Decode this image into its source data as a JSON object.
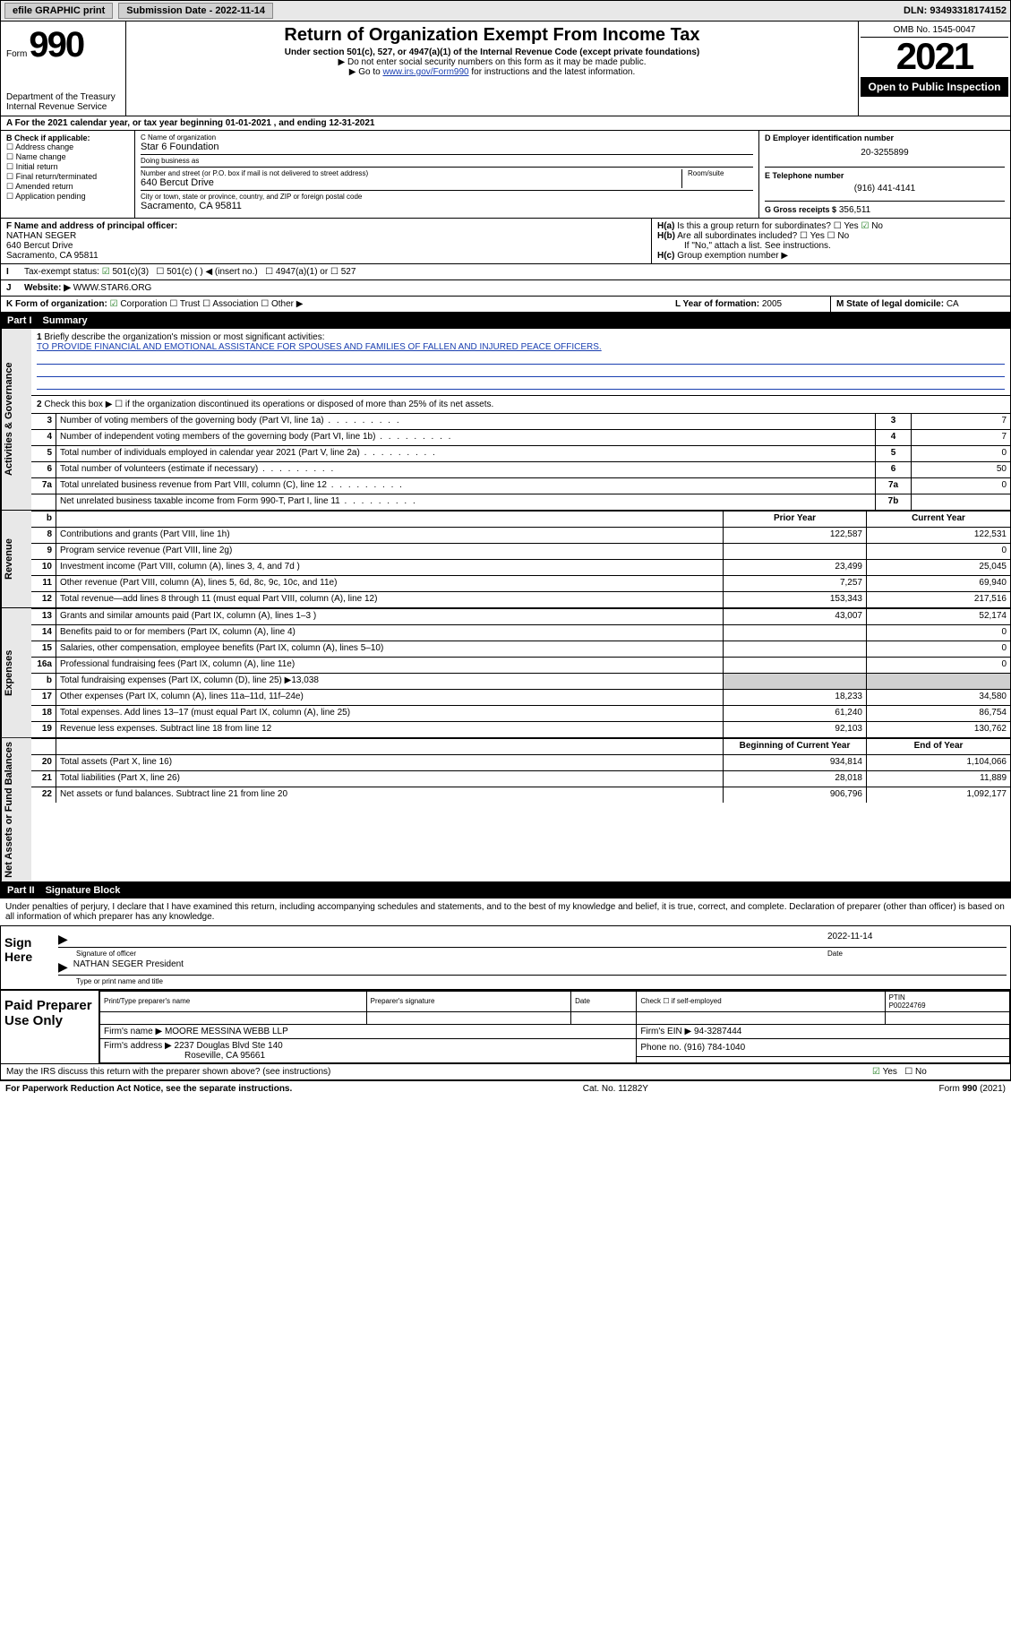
{
  "topbar": {
    "efile": "efile GRAPHIC print",
    "submission_label": "Submission Date - 2022-11-14",
    "dln": "DLN: 93493318174152"
  },
  "header": {
    "form_word": "Form",
    "form_number": "990",
    "dept": "Department of the Treasury",
    "irs": "Internal Revenue Service",
    "title": "Return of Organization Exempt From Income Tax",
    "subtitle": "Under section 501(c), 527, or 4947(a)(1) of the Internal Revenue Code (except private foundations)",
    "note1": "Do not enter social security numbers on this form as it may be made public.",
    "note2_pre": "Go to ",
    "note2_link": "www.irs.gov/Form990",
    "note2_post": " for instructions and the latest information.",
    "omb": "OMB No. 1545-0047",
    "year": "2021",
    "open_public": "Open to Public Inspection"
  },
  "line_a": "For the 2021 calendar year, or tax year beginning 01-01-2021  , and ending 12-31-2021",
  "box_b": {
    "header": "B Check if applicable:",
    "items": [
      "Address change",
      "Name change",
      "Initial return",
      "Final return/terminated",
      "Amended return",
      "Application pending"
    ]
  },
  "box_c": {
    "name_lbl": "C Name of organization",
    "name": "Star 6 Foundation",
    "dba_lbl": "Doing business as",
    "dba": "",
    "street_lbl": "Number and street (or P.O. box if mail is not delivered to street address)",
    "room_lbl": "Room/suite",
    "street": "640 Bercut Drive",
    "city_lbl": "City or town, state or province, country, and ZIP or foreign postal code",
    "city": "Sacramento, CA  95811"
  },
  "box_d": {
    "lbl": "D Employer identification number",
    "val": "20-3255899"
  },
  "box_e": {
    "lbl": "E Telephone number",
    "val": "(916) 441-4141"
  },
  "box_g": {
    "lbl": "G Gross receipts $",
    "val": "356,511"
  },
  "box_f": {
    "lbl": "F Name and address of principal officer:",
    "name": "NATHAN SEGER",
    "street": "640 Bercut Drive",
    "city": "Sacramento, CA  95811"
  },
  "box_h": {
    "a": "Is this a group return for subordinates?",
    "b": "Are all subordinates included?",
    "note": "If \"No,\" attach a list. See instructions.",
    "c": "Group exemption number ▶"
  },
  "box_i": {
    "lbl": "Tax-exempt status:",
    "opt1": "501(c)(3)",
    "opt2": "501(c) (  ) ◀ (insert no.)",
    "opt3": "4947(a)(1) or",
    "opt4": "527"
  },
  "box_j": {
    "lbl": "Website: ▶",
    "val": "WWW.STAR6.ORG"
  },
  "box_k": {
    "lbl": "K Form of organization:",
    "opts": [
      "Corporation",
      "Trust",
      "Association",
      "Other ▶"
    ]
  },
  "box_l": {
    "lbl": "L Year of formation:",
    "val": "2005"
  },
  "box_m": {
    "lbl": "M State of legal domicile:",
    "val": "CA"
  },
  "part1": {
    "label": "Part I",
    "title": "Summary"
  },
  "sidelabels": {
    "gov": "Activities & Governance",
    "rev": "Revenue",
    "exp": "Expenses",
    "net": "Net Assets or Fund Balances"
  },
  "line1": {
    "num": "1",
    "desc": "Briefly describe the organization's mission or most significant activities:",
    "mission": "TO PROVIDE FINANCIAL AND EMOTIONAL ASSISTANCE FOR SPOUSES AND FAMILIES OF FALLEN AND INJURED PEACE OFFICERS."
  },
  "line2": {
    "num": "2",
    "desc": "Check this box ▶ ☐  if the organization discontinued its operations or disposed of more than 25% of its net assets."
  },
  "gov_lines": [
    {
      "num": "3",
      "desc": "Number of voting members of the governing body (Part VI, line 1a)",
      "box": "3",
      "val": "7"
    },
    {
      "num": "4",
      "desc": "Number of independent voting members of the governing body (Part VI, line 1b)",
      "box": "4",
      "val": "7"
    },
    {
      "num": "5",
      "desc": "Total number of individuals employed in calendar year 2021 (Part V, line 2a)",
      "box": "5",
      "val": "0"
    },
    {
      "num": "6",
      "desc": "Total number of volunteers (estimate if necessary)",
      "box": "6",
      "val": "50"
    },
    {
      "num": "7a",
      "desc": "Total unrelated business revenue from Part VIII, column (C), line 12",
      "box": "7a",
      "val": "0"
    },
    {
      "num": "",
      "desc": "Net unrelated business taxable income from Form 990-T, Part I, line 11",
      "box": "7b",
      "val": ""
    }
  ],
  "year_hdr": {
    "b": "b",
    "prior": "Prior Year",
    "current": "Current Year"
  },
  "rev_lines": [
    {
      "num": "8",
      "desc": "Contributions and grants (Part VIII, line 1h)",
      "prior": "122,587",
      "curr": "122,531"
    },
    {
      "num": "9",
      "desc": "Program service revenue (Part VIII, line 2g)",
      "prior": "",
      "curr": "0"
    },
    {
      "num": "10",
      "desc": "Investment income (Part VIII, column (A), lines 3, 4, and 7d )",
      "prior": "23,499",
      "curr": "25,045"
    },
    {
      "num": "11",
      "desc": "Other revenue (Part VIII, column (A), lines 5, 6d, 8c, 9c, 10c, and 11e)",
      "prior": "7,257",
      "curr": "69,940"
    },
    {
      "num": "12",
      "desc": "Total revenue—add lines 8 through 11 (must equal Part VIII, column (A), line 12)",
      "prior": "153,343",
      "curr": "217,516"
    }
  ],
  "exp_lines": [
    {
      "num": "13",
      "desc": "Grants and similar amounts paid (Part IX, column (A), lines 1–3 )",
      "prior": "43,007",
      "curr": "52,174"
    },
    {
      "num": "14",
      "desc": "Benefits paid to or for members (Part IX, column (A), line 4)",
      "prior": "",
      "curr": "0"
    },
    {
      "num": "15",
      "desc": "Salaries, other compensation, employee benefits (Part IX, column (A), lines 5–10)",
      "prior": "",
      "curr": "0"
    },
    {
      "num": "16a",
      "desc": "Professional fundraising fees (Part IX, column (A), line 11e)",
      "prior": "",
      "curr": "0"
    }
  ],
  "line16b": {
    "num": "b",
    "desc": "Total fundraising expenses (Part IX, column (D), line 25) ▶13,038"
  },
  "exp_lines2": [
    {
      "num": "17",
      "desc": "Other expenses (Part IX, column (A), lines 11a–11d, 11f–24e)",
      "prior": "18,233",
      "curr": "34,580"
    },
    {
      "num": "18",
      "desc": "Total expenses. Add lines 13–17 (must equal Part IX, column (A), line 25)",
      "prior": "61,240",
      "curr": "86,754"
    },
    {
      "num": "19",
      "desc": "Revenue less expenses. Subtract line 18 from line 12",
      "prior": "92,103",
      "curr": "130,762"
    }
  ],
  "net_hdr": {
    "prior": "Beginning of Current Year",
    "curr": "End of Year"
  },
  "net_lines": [
    {
      "num": "20",
      "desc": "Total assets (Part X, line 16)",
      "prior": "934,814",
      "curr": "1,104,066"
    },
    {
      "num": "21",
      "desc": "Total liabilities (Part X, line 26)",
      "prior": "28,018",
      "curr": "11,889"
    },
    {
      "num": "22",
      "desc": "Net assets or fund balances. Subtract line 21 from line 20",
      "prior": "906,796",
      "curr": "1,092,177"
    }
  ],
  "part2": {
    "label": "Part II",
    "title": "Signature Block"
  },
  "penalties": "Under penalties of perjury, I declare that I have examined this return, including accompanying schedules and statements, and to the best of my knowledge and belief, it is true, correct, and complete. Declaration of preparer (other than officer) is based on all information of which preparer has any knowledge.",
  "sign": {
    "here": "Sign Here",
    "sig_lbl": "Signature of officer",
    "date_lbl": "Date",
    "date": "2022-11-14",
    "name": "NATHAN SEGER President",
    "name_lbl": "Type or print name and title"
  },
  "preparer": {
    "lbl": "Paid Preparer Use Only",
    "h": [
      "Print/Type preparer's name",
      "Preparer's signature",
      "Date"
    ],
    "check_lbl": "Check ☐ if self-employed",
    "ptin_lbl": "PTIN",
    "ptin": "P00224769",
    "firm_name_lbl": "Firm's name    ▶",
    "firm_name": "MOORE MESSINA WEBB LLP",
    "ein_lbl": "Firm's EIN ▶",
    "ein": "94-3287444",
    "addr_lbl": "Firm's address ▶",
    "addr1": "2237 Douglas Blvd Ste 140",
    "addr2": "Roseville, CA  95661",
    "phone_lbl": "Phone no.",
    "phone": "(916) 784-1040"
  },
  "discuss": "May the IRS discuss this return with the preparer shown above? (see instructions)",
  "footer": {
    "left": "For Paperwork Reduction Act Notice, see the separate instructions.",
    "mid": "Cat. No. 11282Y",
    "right": "Form 990 (2021)"
  }
}
